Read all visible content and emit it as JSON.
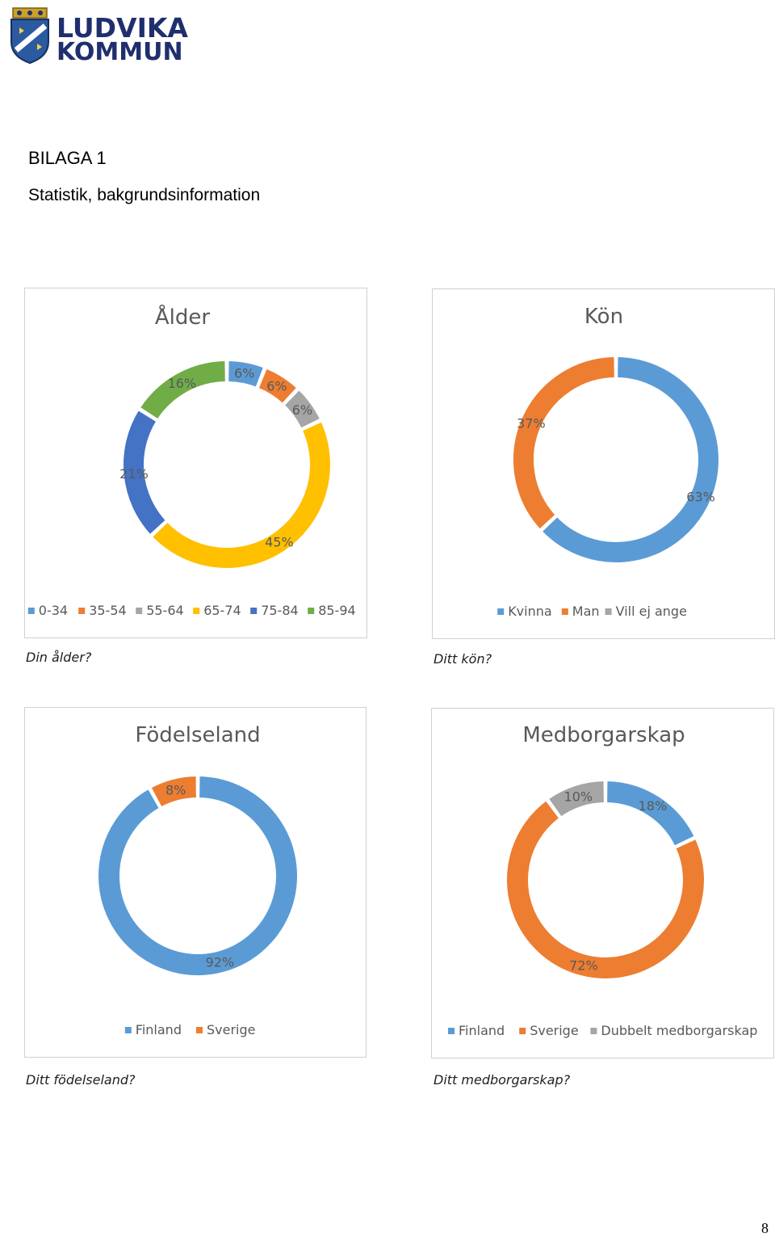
{
  "header": {
    "logo_line1": "LUDVIKA",
    "logo_line2": "KOMMUN",
    "heading": "BILAGA 1",
    "subheading": "Statistik, bakgrundsinformation"
  },
  "colors": {
    "blue": "#5b9bd5",
    "orange": "#ed7d31",
    "gray": "#a5a5a5",
    "yellow": "#ffc000",
    "darkblue": "#4472c4",
    "green": "#70ad47"
  },
  "chart_data": [
    {
      "type": "pie",
      "title": "Ålder",
      "caption": "Din ålder?",
      "categories": [
        "0-34",
        "35-54",
        "55-64",
        "65-74",
        "75-84",
        "85-94"
      ],
      "values": [
        6,
        6,
        6,
        45,
        21,
        16
      ],
      "labels": [
        "6%",
        "6%",
        "6%",
        "45%",
        "21%",
        "16%"
      ],
      "colors": [
        "#5b9bd5",
        "#ed7d31",
        "#a5a5a5",
        "#ffc000",
        "#4472c4",
        "#70ad47"
      ],
      "legend": "bottom"
    },
    {
      "type": "pie",
      "title": "Kön",
      "caption": "Ditt kön?",
      "categories": [
        "Kvinna",
        "Man",
        "Vill ej ange"
      ],
      "values": [
        63,
        37,
        0
      ],
      "labels": [
        "63%",
        "37%",
        ""
      ],
      "colors": [
        "#5b9bd5",
        "#ed7d31",
        "#a5a5a5"
      ],
      "legend": "bottom"
    },
    {
      "type": "pie",
      "title": "Födelseland",
      "caption": "Ditt födelseland?",
      "categories": [
        "Finland",
        "Sverige"
      ],
      "values": [
        92,
        8
      ],
      "labels": [
        "92%",
        "8%"
      ],
      "colors": [
        "#5b9bd5",
        "#ed7d31"
      ],
      "legend": "bottom"
    },
    {
      "type": "pie",
      "title": "Medborgarskap",
      "caption": "Ditt medborgarskap?",
      "categories": [
        "Finland",
        "Sverige",
        "Dubbelt medborgarskap"
      ],
      "values": [
        18,
        72,
        10
      ],
      "labels": [
        "18%",
        "72%",
        "10%"
      ],
      "colors": [
        "#5b9bd5",
        "#ed7d31",
        "#a5a5a5"
      ],
      "legend": "bottom"
    }
  ],
  "footer": {
    "page_number": "8"
  }
}
